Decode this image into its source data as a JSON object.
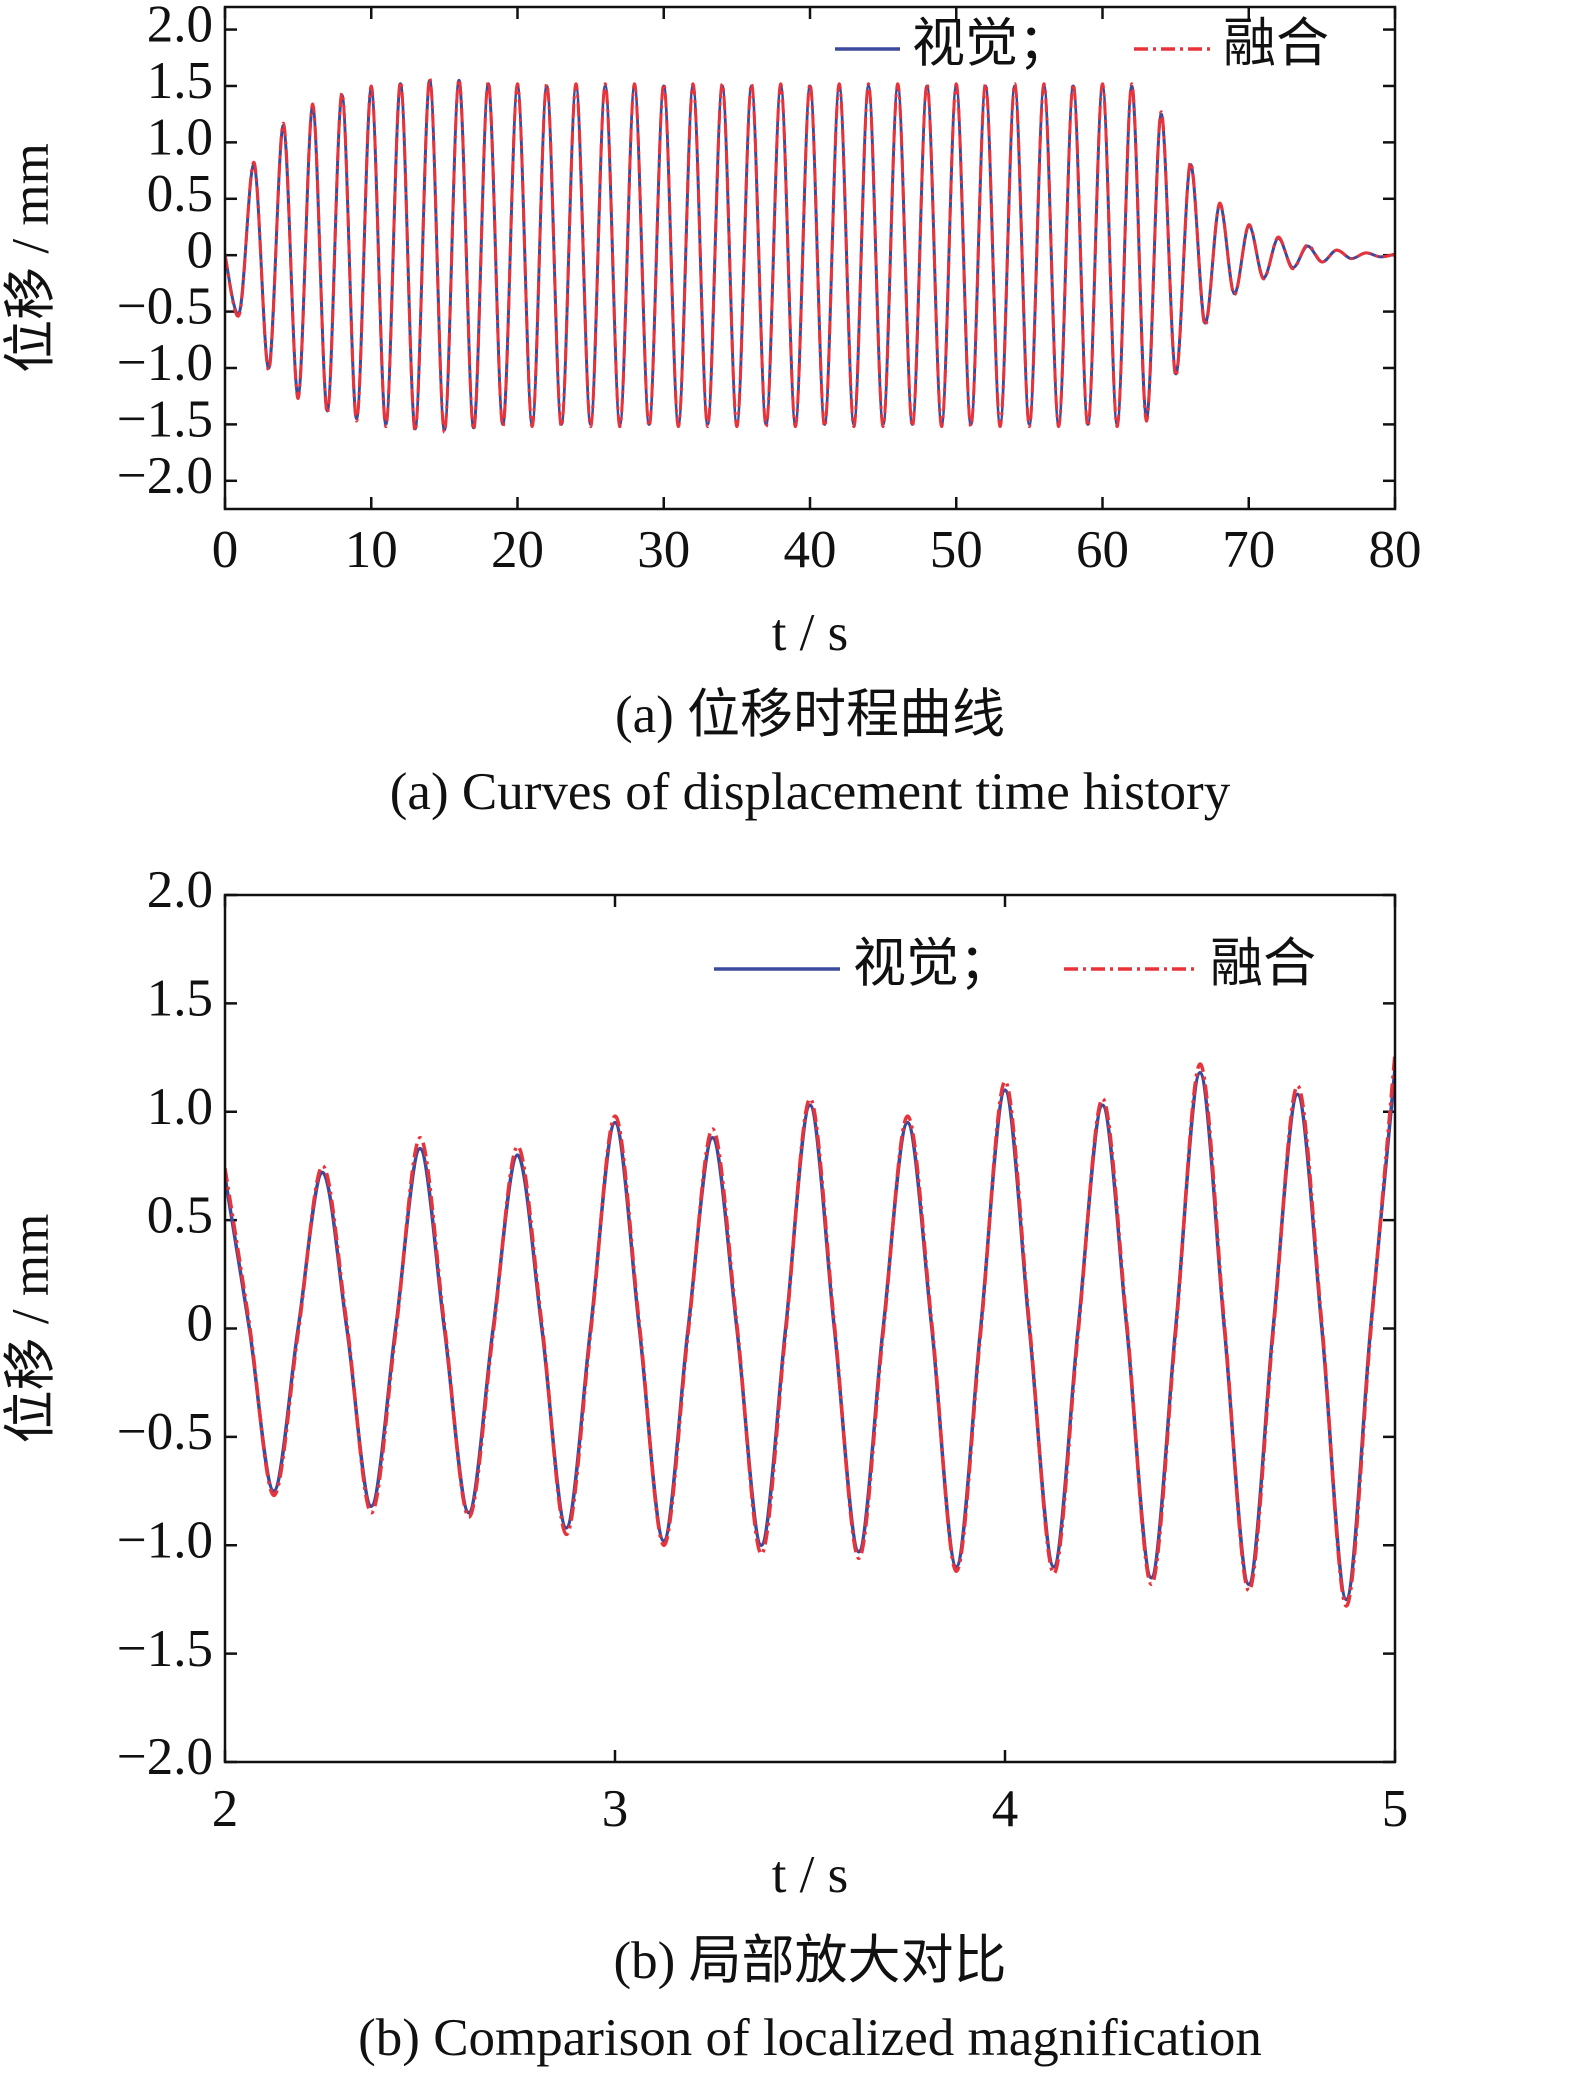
{
  "chart_data": [
    {
      "type": "line",
      "ylabel": "位移 / mm",
      "xlabel": "t / s",
      "caption_zh": "(a)  位移时程曲线",
      "caption_en": "(a)  Curves of displacement time history",
      "xlim": [
        0,
        80
      ],
      "ylim": [
        -2.25,
        2.2
      ],
      "xticks": [
        0,
        10,
        20,
        30,
        40,
        50,
        60,
        70,
        80
      ],
      "yticks": [
        {
          "value": -2,
          "label": "−2.0"
        },
        {
          "value": -1.5,
          "label": "−1.5"
        },
        {
          "value": -1,
          "label": "−1.0"
        },
        {
          "value": -0.5,
          "label": "−0.5"
        },
        0,
        0.5,
        {
          "value": 1,
          "label": "1.0"
        },
        1.5,
        {
          "value": 2,
          "label": "2.0"
        }
      ],
      "x": [
        0,
        1,
        2,
        3,
        4,
        5,
        6,
        7,
        8,
        9,
        10,
        11,
        12,
        13,
        14,
        15,
        16,
        17,
        18,
        19,
        20,
        21,
        22,
        23,
        24,
        25,
        26,
        27,
        28,
        29,
        30,
        31,
        32,
        33,
        34,
        35,
        36,
        37,
        38,
        39,
        40,
        41,
        42,
        43,
        44,
        45,
        46,
        47,
        48,
        49,
        50,
        51,
        52,
        53,
        54,
        55,
        56,
        57,
        58,
        59,
        60,
        61,
        62,
        63,
        64,
        65,
        66,
        67,
        68,
        69,
        70,
        71,
        72,
        73,
        74,
        75,
        76,
        77,
        78,
        79,
        80
      ],
      "series": [
        {
          "name": "视觉；",
          "color": "#3b4a9c",
          "values": [
            0,
            -0.5,
            0.8,
            -1.0,
            1.15,
            -1.25,
            1.32,
            -1.38,
            1.42,
            -1.45,
            1.48,
            -1.5,
            1.52,
            -1.54,
            1.55,
            -1.55,
            1.55,
            -1.53,
            1.52,
            -1.5,
            1.5,
            -1.5,
            1.5,
            -1.5,
            1.5,
            -1.5,
            1.5,
            -1.5,
            1.5,
            -1.5,
            1.5,
            -1.5,
            1.5,
            -1.5,
            1.5,
            -1.5,
            1.5,
            -1.5,
            1.5,
            -1.5,
            1.5,
            -1.5,
            1.5,
            -1.5,
            1.5,
            -1.5,
            1.5,
            -1.5,
            1.5,
            -1.5,
            1.5,
            -1.5,
            1.5,
            -1.5,
            1.5,
            -1.5,
            1.5,
            -1.5,
            1.5,
            -1.5,
            1.5,
            -1.5,
            1.5,
            -1.45,
            1.25,
            -1.05,
            0.8,
            -0.6,
            0.45,
            -0.34,
            0.26,
            -0.2,
            0.15,
            -0.11,
            0.08,
            -0.06,
            0.045,
            -0.03,
            0.02,
            -0.015,
            0.01
          ]
        },
        {
          "name": "融合",
          "color": "#e8333a",
          "values": [
            0,
            -0.52,
            0.82,
            -1.02,
            1.17,
            -1.27,
            1.34,
            -1.4,
            1.44,
            -1.47,
            1.5,
            -1.52,
            1.54,
            -1.56,
            1.57,
            -1.57,
            1.56,
            -1.55,
            1.54,
            -1.52,
            1.52,
            -1.52,
            1.52,
            -1.52,
            1.52,
            -1.52,
            1.52,
            -1.52,
            1.52,
            -1.52,
            1.52,
            -1.52,
            1.52,
            -1.52,
            1.52,
            -1.52,
            1.52,
            -1.52,
            1.52,
            -1.52,
            1.52,
            -1.52,
            1.52,
            -1.52,
            1.52,
            -1.52,
            1.52,
            -1.52,
            1.52,
            -1.52,
            1.52,
            -1.52,
            1.52,
            -1.52,
            1.52,
            -1.52,
            1.52,
            -1.52,
            1.52,
            -1.52,
            1.52,
            -1.52,
            1.52,
            -1.47,
            1.27,
            -1.07,
            0.82,
            -0.62,
            0.46,
            -0.35,
            0.27,
            -0.21,
            0.16,
            -0.12,
            0.09,
            -0.06,
            0.045,
            -0.03,
            0.02,
            -0.015,
            0.01
          ]
        }
      ]
    },
    {
      "type": "line",
      "ylabel": "位移 / mm",
      "xlabel": "t / s",
      "caption_zh": "(b)  局部放大对比",
      "caption_en": "(b)  Comparison of localized magnification",
      "xlim": [
        2,
        5
      ],
      "ylim": [
        -2,
        2
      ],
      "xticks": [
        2,
        3,
        4,
        5
      ],
      "yticks": [
        {
          "value": -2,
          "label": "−2.0"
        },
        {
          "value": -1.5,
          "label": "−1.5"
        },
        {
          "value": -1,
          "label": "−1.0"
        },
        {
          "value": -0.5,
          "label": "−0.5"
        },
        0,
        0.5,
        {
          "value": 1,
          "label": "1.0"
        },
        1.5,
        {
          "value": 2,
          "label": "2.0"
        }
      ],
      "x": [
        2,
        2.0625,
        2.125,
        2.1875,
        2.25,
        2.3125,
        2.375,
        2.4375,
        2.5,
        2.5625,
        2.625,
        2.6875,
        2.75,
        2.8125,
        2.875,
        2.9375,
        3,
        3.0625,
        3.125,
        3.1875,
        3.25,
        3.3125,
        3.375,
        3.4375,
        3.5,
        3.5625,
        3.625,
        3.6875,
        3.75,
        3.8125,
        3.875,
        3.9375,
        4,
        4.0625,
        4.125,
        4.1875,
        4.25,
        4.3125,
        4.375,
        4.4375,
        4.5,
        4.5625,
        4.625,
        4.6875,
        4.75,
        4.8125,
        4.875,
        4.9375,
        5
      ],
      "series": [
        {
          "name": "视觉；",
          "color": "#3b4a9c",
          "values": [
            0.7,
            0,
            -0.75,
            0,
            0.72,
            0,
            -0.82,
            0,
            0.83,
            0,
            -0.85,
            0,
            0.8,
            0,
            -0.92,
            0,
            0.95,
            0,
            -0.98,
            0,
            0.88,
            0,
            -1.0,
            0,
            1.03,
            0,
            -1.03,
            0,
            0.95,
            0,
            -1.1,
            0,
            1.1,
            0,
            -1.1,
            0,
            1.03,
            0,
            -1.15,
            0,
            1.18,
            0,
            -1.18,
            0,
            1.08,
            0,
            -1.25,
            0,
            1.2
          ]
        },
        {
          "name": "融合",
          "color": "#e8333a",
          "values": [
            0.74,
            0.02,
            -0.77,
            -0.02,
            0.75,
            0.02,
            -0.85,
            -0.02,
            0.88,
            0.02,
            -0.87,
            -0.02,
            0.84,
            0.02,
            -0.95,
            -0.02,
            0.98,
            0.02,
            -1.0,
            -0.02,
            0.92,
            0.02,
            -1.04,
            -0.02,
            1.06,
            0.02,
            -1.06,
            -0.02,
            0.98,
            0.02,
            -1.12,
            -0.02,
            1.14,
            0.02,
            -1.13,
            -0.02,
            1.06,
            0.02,
            -1.18,
            -0.02,
            1.22,
            0.02,
            -1.21,
            -0.02,
            1.12,
            0.02,
            -1.28,
            -0.02,
            1.27
          ]
        }
      ]
    }
  ]
}
